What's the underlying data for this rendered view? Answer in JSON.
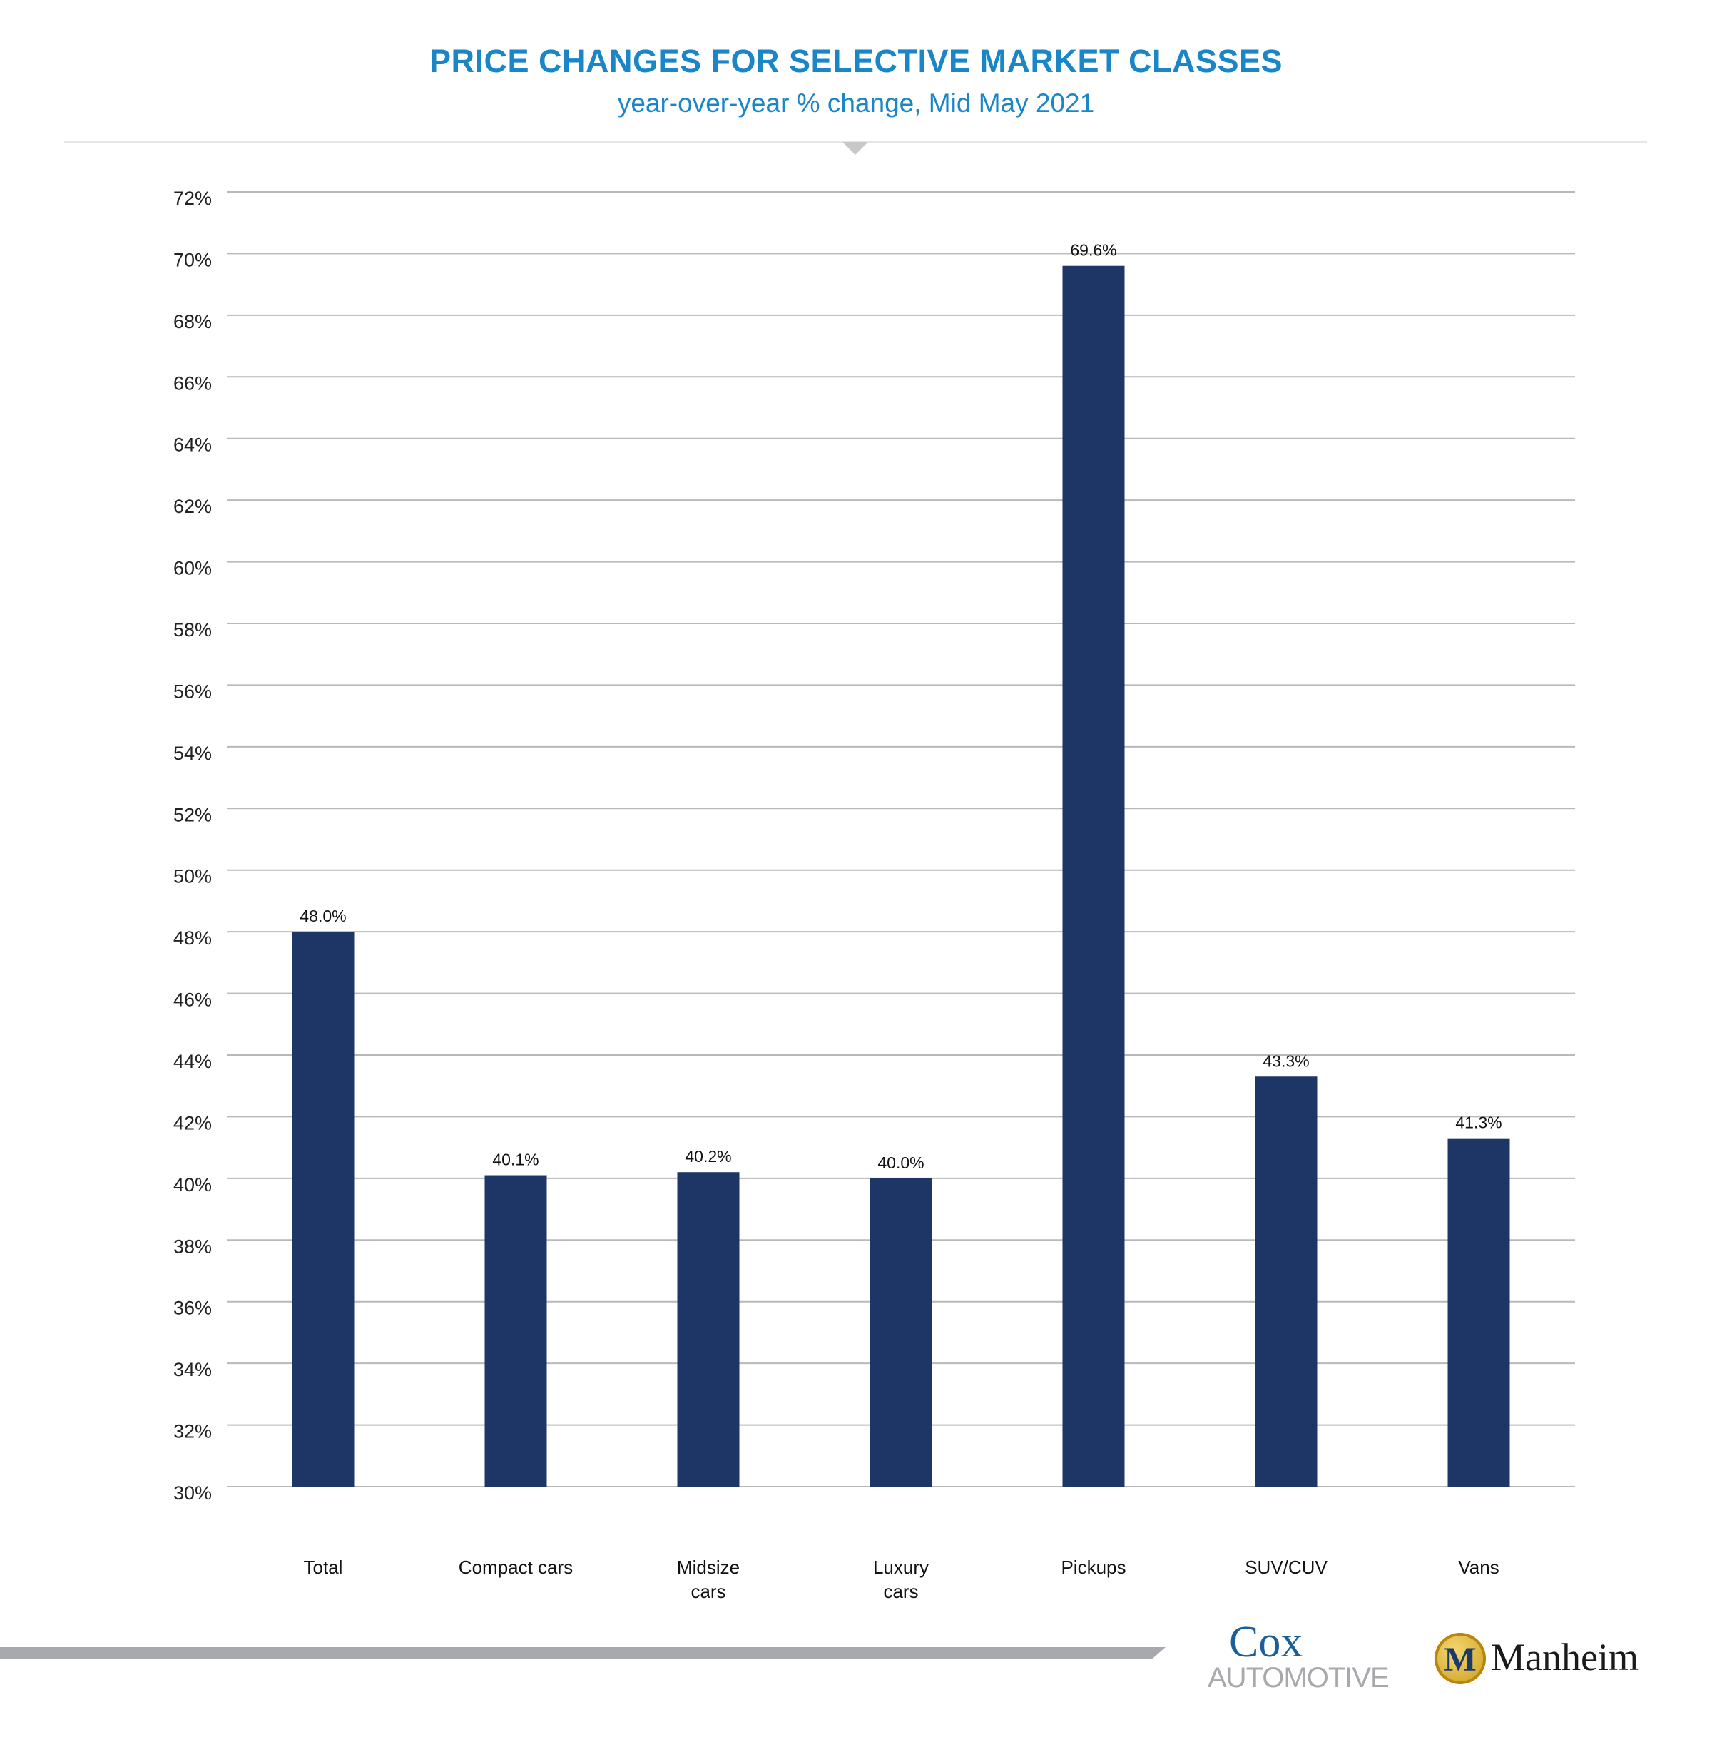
{
  "chart_data": {
    "type": "bar",
    "title": "PRICE CHANGES FOR SELECTIVE MARKET CLASSES",
    "subtitle": "year-over-year % change, Mid May 2021",
    "categories": [
      [
        "Total"
      ],
      [
        "Compact cars"
      ],
      [
        "Midsize",
        "cars"
      ],
      [
        "Luxury",
        "cars"
      ],
      [
        "Pickups"
      ],
      [
        "SUV/CUV"
      ],
      [
        "Vans"
      ]
    ],
    "values": [
      48.0,
      40.1,
      40.2,
      40.0,
      69.6,
      43.3,
      41.3
    ],
    "data_labels": [
      "48.0%",
      "40.1%",
      "40.2%",
      "40.0%",
      "69.6%",
      "43.3%",
      "41.3%"
    ],
    "xlabel": "",
    "ylabel": "",
    "ylim": [
      30,
      72
    ],
    "yticks": [
      30,
      32,
      34,
      36,
      38,
      40,
      42,
      44,
      46,
      48,
      50,
      52,
      54,
      56,
      58,
      60,
      62,
      64,
      66,
      68,
      70,
      72
    ],
    "ytick_suffix": "%",
    "grid": true,
    "legend": "none",
    "bar_color": "#1d3665",
    "title_color": "#1a86c8"
  },
  "logos": {
    "cox_top": "Cox",
    "cox_bottom": "AUTOMOTIVE",
    "manheim": "Manheim",
    "manheim_mark": "M"
  }
}
